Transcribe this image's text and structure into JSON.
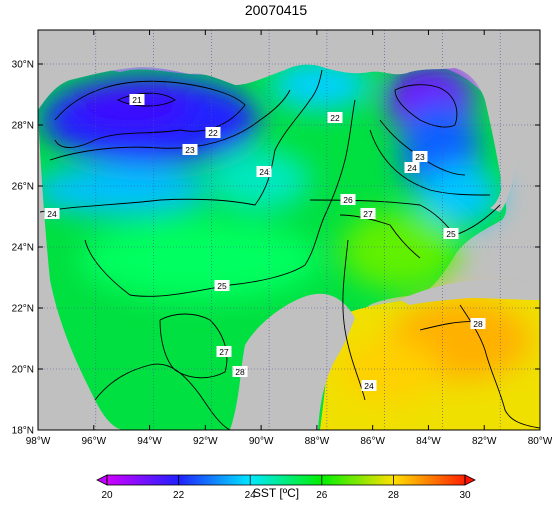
{
  "title": "20070415",
  "colorbar": {
    "label": "SST [ºC]",
    "ticks": [
      "20",
      "22",
      "24",
      "26",
      "28",
      "30"
    ],
    "min": 20,
    "max": 30
  },
  "axes": {
    "lon_labels": [
      "98°W",
      "96°W",
      "94°W",
      "92°W",
      "90°W",
      "88°W",
      "86°W",
      "84°W",
      "82°W",
      "80°W"
    ],
    "lat_labels": [
      "30°N",
      "28°N",
      "26°N",
      "24°N",
      "22°N",
      "20°N",
      "18°N"
    ]
  },
  "contour_labels": [
    "21",
    "22",
    "23",
    "24",
    "22",
    "23",
    "24",
    "25",
    "26",
    "27",
    "24",
    "25",
    "27",
    "28",
    "28",
    "24"
  ],
  "colors": {
    "land": "#c0c0c0",
    "grid": "#4040a0",
    "c20": "#d000ff",
    "c22": "#2020ff",
    "c24": "#00e8ff",
    "c26": "#00f000",
    "c28": "#ffe000",
    "c30": "#ff2000"
  }
}
